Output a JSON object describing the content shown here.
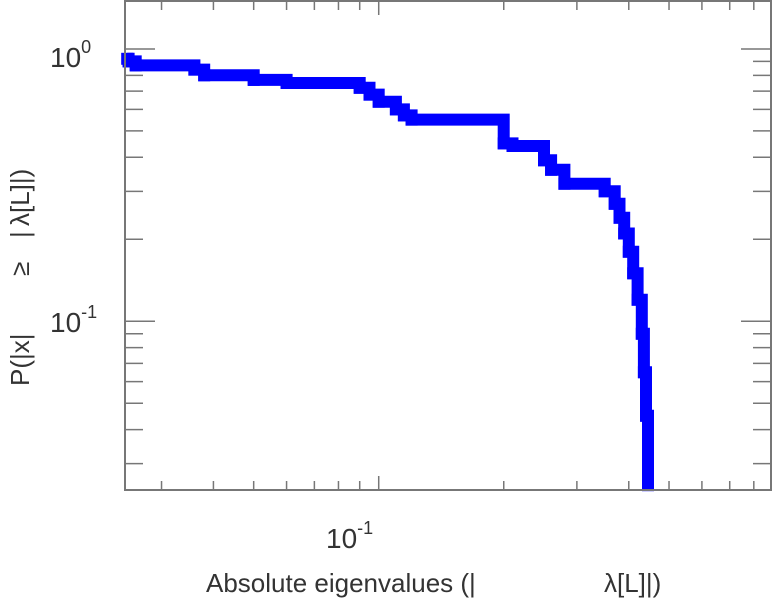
{
  "chart_data": {
    "type": "line",
    "xscale": "log",
    "yscale": "log",
    "xlim": [
      0.0245,
      0.88
    ],
    "ylim": [
      0.024,
      1.5
    ],
    "xticks_labeled": [
      {
        "base": "10",
        "exp": "-1",
        "value": 0.1
      }
    ],
    "yticks_labeled": [
      {
        "base": "10",
        "exp": "0",
        "value": 1
      },
      {
        "base": "10",
        "exp": "-1",
        "value": 0.1
      }
    ],
    "xlabel": {
      "text": "Absolute eigenvalues (|",
      "symbol": "λ",
      "suffix": "[L]|)"
    },
    "ylabel": {
      "prefix": "P(|x|",
      "ge": "≥",
      "bar": "|",
      "symbol": "λ",
      "suffix": "[L]|)"
    },
    "grid": false,
    "legend": "none",
    "series": [
      {
        "color": "#0000ff",
        "step": true,
        "x": [
          0.0248,
          0.025,
          0.026,
          0.036,
          0.038,
          0.05,
          0.06,
          0.09,
          0.095,
          0.1,
          0.11,
          0.115,
          0.12,
          0.2,
          0.21,
          0.25,
          0.26,
          0.28,
          0.35,
          0.37,
          0.38,
          0.39,
          0.4,
          0.41,
          0.42,
          0.43,
          0.435,
          0.44,
          0.445
        ],
        "y": [
          0.92,
          0.9,
          0.87,
          0.84,
          0.8,
          0.77,
          0.75,
          0.72,
          0.68,
          0.64,
          0.6,
          0.57,
          0.55,
          0.45,
          0.44,
          0.39,
          0.36,
          0.32,
          0.3,
          0.27,
          0.24,
          0.21,
          0.18,
          0.15,
          0.12,
          0.09,
          0.065,
          0.045,
          0.025
        ]
      }
    ]
  }
}
